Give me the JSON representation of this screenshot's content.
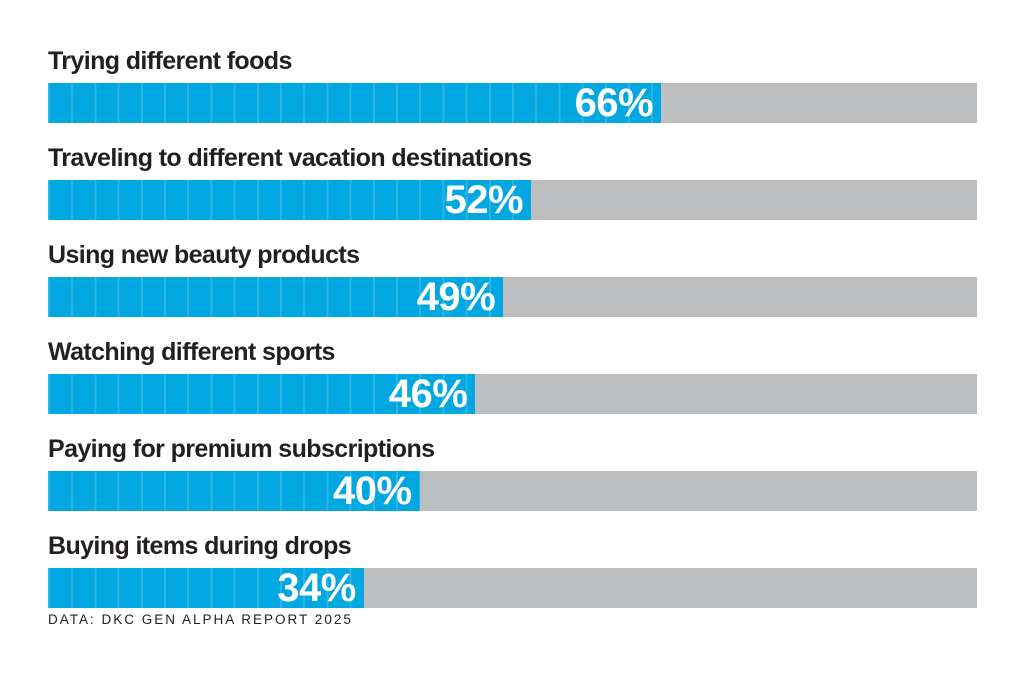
{
  "chart_data": {
    "type": "bar",
    "orientation": "horizontal",
    "title": "",
    "categories": [
      "Trying different foods",
      "Traveling to different vacation destinations",
      "Using new beauty products",
      "Watching different sports",
      "Paying for premium subscriptions",
      "Buying items during drops"
    ],
    "values": [
      66,
      52,
      49,
      46,
      40,
      34
    ],
    "value_labels": [
      "66%",
      "52%",
      "49%",
      "46%",
      "40%",
      "34%"
    ],
    "xlim": [
      0,
      100
    ],
    "grid": "subtle vertical stripes inside filled bars",
    "legend": "none",
    "colors": {
      "bar_fill": "#00a7e1",
      "bar_track": "#bcbec0",
      "category_label": "#231f20",
      "value_text": "#ffffff",
      "background": "#ffffff",
      "source_text": "#221f1f"
    }
  },
  "footer": {
    "source": "DATA: DKC GEN ALPHA REPORT 2025"
  }
}
